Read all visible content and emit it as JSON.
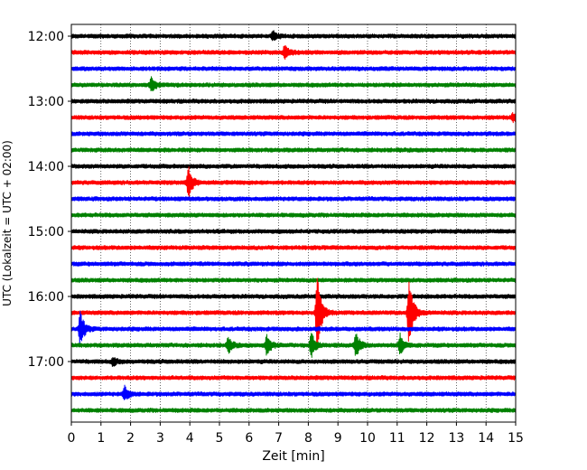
{
  "chart_data": {
    "type": "line",
    "title": "",
    "xlabel": "Zeit  [min]",
    "ylabel": "UTC (Lokalzeit = UTC + 02:00)",
    "xlim": [
      0,
      15
    ],
    "x_ticks": [
      "0",
      "1",
      "2",
      "3",
      "4",
      "5",
      "6",
      "7",
      "8",
      "9",
      "10",
      "11",
      "12",
      "13",
      "14",
      "15"
    ],
    "y_tick_labels": [
      "12:00",
      "13:00",
      "14:00",
      "15:00",
      "16:00",
      "17:00"
    ],
    "traces_per_hour": 4,
    "trace_colors": [
      "#000000",
      "#ff0000",
      "#0000ff",
      "#008000"
    ],
    "grid": "vertical dotted",
    "traces": [
      {
        "start": "12:00",
        "events": [
          {
            "t": 6.8,
            "amp": 0.6
          }
        ]
      },
      {
        "start": "12:15",
        "events": [
          {
            "t": 7.2,
            "amp": 0.9
          }
        ]
      },
      {
        "start": "12:30",
        "events": []
      },
      {
        "start": "12:45",
        "events": [
          {
            "t": 2.7,
            "amp": 0.8
          }
        ]
      },
      {
        "start": "13:00",
        "events": []
      },
      {
        "start": "13:15",
        "events": [
          {
            "t": 14.9,
            "amp": 0.5
          }
        ]
      },
      {
        "start": "13:30",
        "events": []
      },
      {
        "start": "13:45",
        "events": []
      },
      {
        "start": "14:00",
        "events": []
      },
      {
        "start": "14:15",
        "events": [
          {
            "t": 3.95,
            "amp": 2.0
          }
        ]
      },
      {
        "start": "14:30",
        "events": []
      },
      {
        "start": "14:45",
        "events": []
      },
      {
        "start": "15:00",
        "events": []
      },
      {
        "start": "15:15",
        "events": []
      },
      {
        "start": "15:30",
        "events": []
      },
      {
        "start": "15:45",
        "events": []
      },
      {
        "start": "16:00",
        "events": []
      },
      {
        "start": "16:15",
        "events": [
          {
            "t": 8.3,
            "amp": 5.0
          },
          {
            "t": 11.4,
            "amp": 5.0
          }
        ]
      },
      {
        "start": "16:30",
        "events": [
          {
            "t": 0.3,
            "amp": 2.2
          }
        ]
      },
      {
        "start": "16:45",
        "events": [
          {
            "t": 5.3,
            "amp": 0.9
          },
          {
            "t": 6.6,
            "amp": 1.4
          },
          {
            "t": 8.1,
            "amp": 1.6
          },
          {
            "t": 9.6,
            "amp": 1.6
          },
          {
            "t": 11.1,
            "amp": 1.3
          }
        ]
      },
      {
        "start": "17:00",
        "events": [
          {
            "t": 1.4,
            "amp": 0.5
          }
        ]
      },
      {
        "start": "17:15",
        "events": []
      },
      {
        "start": "17:30",
        "events": [
          {
            "t": 1.8,
            "amp": 0.9
          }
        ]
      },
      {
        "start": "17:45",
        "events": []
      }
    ]
  }
}
